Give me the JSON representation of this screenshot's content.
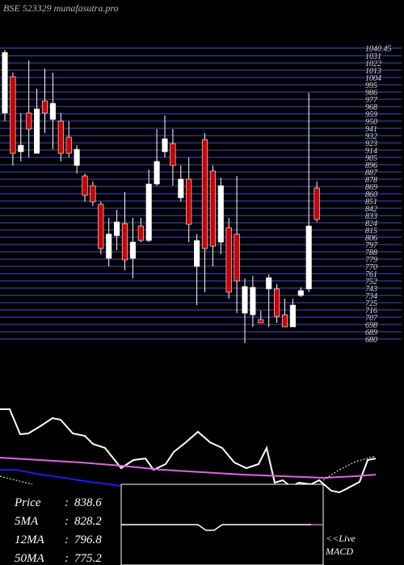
{
  "title": "BSE 523329 munafasutra.pro",
  "chart_data": [
    {
      "type": "candlestick",
      "up_color": "#ffffff",
      "down_color": "#cc0000",
      "grid_color": "#3a3ab0",
      "ylim": [
        675,
        1045
      ],
      "yticks": [
        1040.45,
        1031,
        1022,
        1013,
        1004,
        995,
        986,
        977,
        968,
        959,
        950,
        941,
        932,
        923,
        914,
        905,
        896,
        887,
        878,
        869,
        860,
        851,
        842,
        833,
        824,
        815,
        806,
        797,
        788,
        779,
        770,
        761,
        752,
        743,
        734,
        725,
        716,
        707,
        698,
        689,
        680
      ],
      "open": [
        960,
        1005,
        912,
        960,
        910,
        975,
        952,
        950,
        930,
        895,
        882,
        870,
        847,
        780,
        808,
        823,
        780,
        820,
        802,
        872,
        912,
        922,
        855,
        878,
        770,
        927,
        888,
        800,
        818,
        810,
        712,
        710,
        704,
        742,
        742,
        710,
        695,
        734,
        742,
        867
      ],
      "high": [
        1038,
        1010,
        960,
        1025,
        990,
        1015,
        1010,
        960,
        950,
        920,
        885,
        875,
        850,
        830,
        840,
        862,
        830,
        830,
        890,
        940,
        957,
        940,
        895,
        905,
        810,
        935,
        895,
        880,
        830,
        882,
        755,
        758,
        715,
        760,
        748,
        730,
        730,
        744,
        985,
        875
      ],
      "low": [
        950,
        895,
        900,
        905,
        910,
        935,
        915,
        900,
        905,
        885,
        850,
        845,
        785,
        770,
        790,
        765,
        755,
        800,
        800,
        870,
        905,
        870,
        850,
        800,
        722,
        738,
        770,
        785,
        730,
        712,
        675,
        695,
        700,
        695,
        700,
        695,
        695,
        732,
        738,
        825
      ],
      "close": [
        1035,
        910,
        920,
        940,
        965,
        960,
        972,
        910,
        910,
        915,
        858,
        850,
        792,
        810,
        825,
        778,
        800,
        802,
        872,
        900,
        928,
        895,
        878,
        822,
        802,
        792,
        795,
        870,
        738,
        752,
        745,
        744,
        700,
        756,
        708,
        695,
        722,
        740,
        820,
        828
      ]
    },
    {
      "type": "line",
      "xlim": [
        0,
        500
      ],
      "ylim": [
        0,
        120
      ],
      "series": [
        {
          "color": "#ffffff",
          "width": 2,
          "x": [
            0,
            12,
            25,
            35,
            50,
            65,
            75,
            90,
            105,
            115,
            130,
            150,
            165,
            180,
            190,
            205,
            215,
            230,
            245,
            260,
            275,
            290,
            305,
            320,
            330,
            340,
            350,
            360,
            370,
            385,
            395,
            410,
            420,
            430,
            445,
            455,
            465
          ],
          "values": [
            103,
            103,
            72,
            73,
            82,
            92,
            90,
            73,
            70,
            60,
            55,
            30,
            40,
            42,
            28,
            35,
            50,
            62,
            75,
            62,
            55,
            37,
            30,
            35,
            55,
            12,
            15,
            7,
            12,
            10,
            15,
            2,
            0,
            5,
            13,
            40,
            42
          ]
        },
        {
          "color": "#1a1aff",
          "width": 2,
          "x": [
            0,
            20,
            50,
            80,
            110,
            135,
            150
          ],
          "values": [
            28,
            28,
            22,
            18,
            13,
            10,
            8
          ]
        },
        {
          "color": "#dd66dd",
          "width": 2,
          "x": [
            0,
            50,
            100,
            150,
            200,
            250,
            300,
            350,
            400,
            440,
            465
          ],
          "values": [
            43,
            40,
            37,
            33,
            28,
            25,
            22,
            20,
            18,
            20,
            22
          ]
        },
        {
          "color": "#ffffff",
          "width": 1,
          "dashed": true,
          "x": [
            0,
            20,
            40,
            200,
            400,
            420,
            440,
            465
          ],
          "values": [
            20,
            15,
            10,
            null,
            15,
            28,
            38,
            45
          ]
        }
      ]
    },
    {
      "type": "macd",
      "xlim": [
        150,
        400
      ],
      "ylim": [
        -49,
        49
      ],
      "series": [
        {
          "color": "#ffffff",
          "x": [
            150,
            245,
            255,
            265,
            275,
            385
          ],
          "values": [
            0,
            0,
            -7,
            -7,
            0,
            0
          ]
        },
        {
          "color": "#dd66dd",
          "x": [
            385,
            400
          ],
          "values": [
            0,
            0
          ]
        }
      ]
    }
  ],
  "separator": ":",
  "legend": [
    {
      "label": "Price",
      "value": 838.6
    },
    {
      "label": "5MA",
      "value": 828.2
    },
    {
      "label": "12MA",
      "value": 796.8
    },
    {
      "label": "50MA",
      "value": 775.2
    }
  ],
  "live_label": [
    "<<Live",
    "MACD"
  ]
}
